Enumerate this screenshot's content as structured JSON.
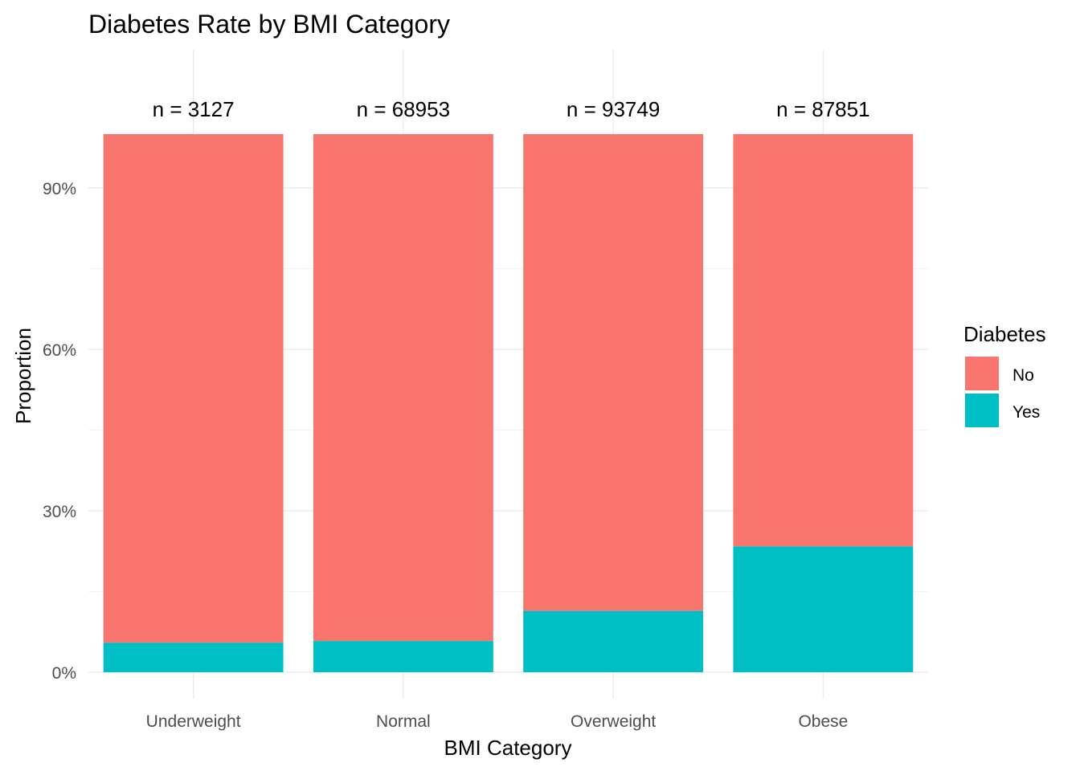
{
  "chart_data": {
    "type": "bar",
    "stacked": true,
    "title": "Diabetes Rate by BMI Category",
    "xlabel": "BMI Category",
    "ylabel": "Proportion",
    "categories": [
      "Underweight",
      "Normal",
      "Overweight",
      "Obese"
    ],
    "counts": [
      "n = 3127",
      "n = 68953",
      "n = 93749",
      "n = 87851"
    ],
    "series": [
      {
        "name": "Yes",
        "color": "#00BFC4",
        "values": [
          0.055,
          0.058,
          0.114,
          0.234
        ]
      },
      {
        "name": "No",
        "color": "#F8766D",
        "values": [
          0.945,
          0.942,
          0.886,
          0.766
        ]
      }
    ],
    "ylim": [
      0,
      1.0
    ],
    "yticks": [
      0,
      0.3,
      0.6,
      0.9
    ],
    "ytick_labels": [
      "0%",
      "30%",
      "60%",
      "90%"
    ],
    "grid": true,
    "legend": {
      "title": "Diabetes",
      "placement": "right",
      "entries": [
        {
          "label": "No",
          "color": "#F8766D"
        },
        {
          "label": "Yes",
          "color": "#00BFC4"
        }
      ]
    }
  }
}
